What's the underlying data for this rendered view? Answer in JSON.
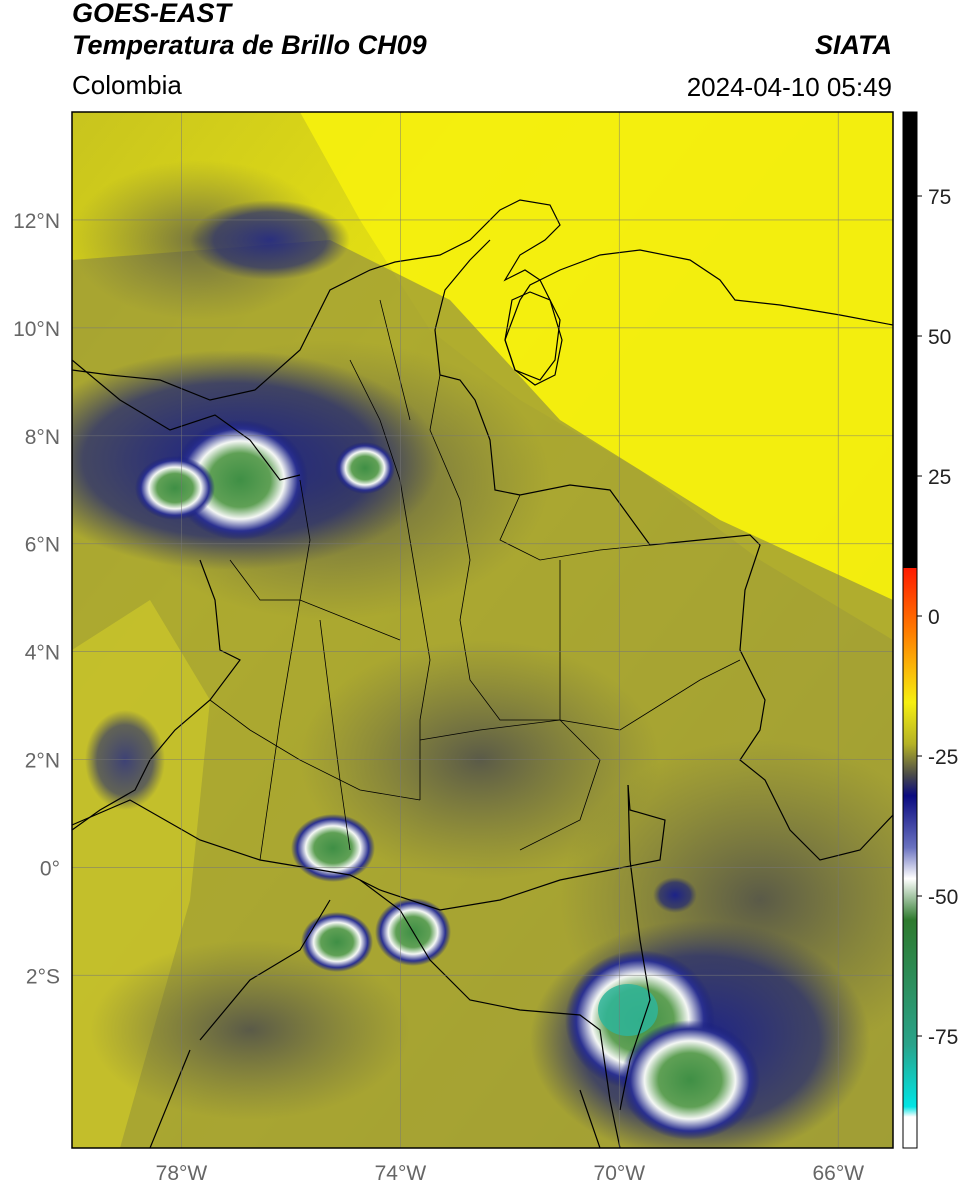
{
  "header": {
    "title_line1": "GOES-EAST",
    "title_line2": "Temperatura de Brillo CH09",
    "agency": "SIATA",
    "region": "Colombia",
    "timestamp": "2024-04-10 05:49"
  },
  "map": {
    "lon_range": [
      -80,
      -65
    ],
    "lat_range": [
      -5.2,
      14
    ],
    "lon_ticks": [
      {
        "value": -78,
        "label": "78°W"
      },
      {
        "value": -74,
        "label": "74°W"
      },
      {
        "value": -70,
        "label": "70°W"
      },
      {
        "value": -66,
        "label": "66°W"
      }
    ],
    "lat_ticks": [
      {
        "value": 12,
        "label": "12°N"
      },
      {
        "value": 10,
        "label": "10°N"
      },
      {
        "value": 8,
        "label": "8°N"
      },
      {
        "value": 6,
        "label": "6°N"
      },
      {
        "value": 4,
        "label": "4°N"
      },
      {
        "value": 2,
        "label": "2°N"
      },
      {
        "value": 0,
        "label": "0°"
      },
      {
        "value": -2,
        "label": "2°S"
      }
    ],
    "grid": true,
    "colors": {
      "warm_yellow": "#f2ee10",
      "olive": "#8f8f3c",
      "dark_olive": "#5e5e44",
      "navy": "#141a7a",
      "white": "#f4f7f4",
      "green": "#3f8f45",
      "teal": "#2fb59a"
    }
  },
  "colorbar": {
    "range": [
      -95,
      90
    ],
    "ticks": [
      {
        "value": 75,
        "label": "75"
      },
      {
        "value": 50,
        "label": "50"
      },
      {
        "value": 25,
        "label": "25"
      },
      {
        "value": 0,
        "label": "0"
      },
      {
        "value": -25,
        "label": "-25"
      },
      {
        "value": -50,
        "label": "-50"
      },
      {
        "value": -75,
        "label": "-75"
      }
    ]
  }
}
